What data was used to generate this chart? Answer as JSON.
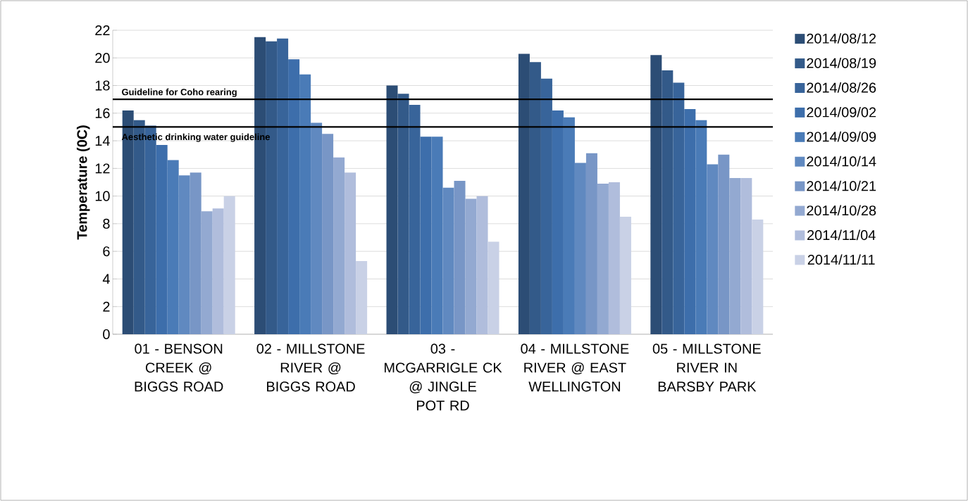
{
  "chart_data": {
    "type": "bar",
    "ylabel": "Temperature (0C)",
    "categories": [
      "01 - BENSON CREEK @ BIGGS ROAD",
      "02 - MILLSTONE RIVER @ BIGGS ROAD",
      "03 - MCGARRIGLE CK @ JINGLE POT RD",
      "04 - MILLSTONE RIVER @ EAST WELLINGTON",
      "05 - MILLSTONE RIVER IN BARSBY PARK"
    ],
    "series": [
      {
        "name": "2014/08/12",
        "color": "#2c4d75",
        "values": [
          16.2,
          21.5,
          18.0,
          20.3,
          20.2
        ]
      },
      {
        "name": "2014/08/19",
        "color": "#335a89",
        "values": [
          15.5,
          21.2,
          17.4,
          19.7,
          19.1
        ]
      },
      {
        "name": "2014/08/26",
        "color": "#38649a",
        "values": [
          15.1,
          21.4,
          16.6,
          18.5,
          18.2
        ]
      },
      {
        "name": "2014/09/02",
        "color": "#3d6eab",
        "values": [
          13.7,
          19.9,
          14.3,
          16.2,
          16.3
        ]
      },
      {
        "name": "2014/09/09",
        "color": "#4a7bb7",
        "values": [
          12.6,
          18.8,
          14.3,
          15.7,
          15.5
        ]
      },
      {
        "name": "2014/10/14",
        "color": "#6089c0",
        "values": [
          11.5,
          15.3,
          10.6,
          12.4,
          12.3
        ]
      },
      {
        "name": "2014/10/21",
        "color": "#7896c6",
        "values": [
          11.7,
          14.5,
          11.1,
          13.1,
          13.0
        ]
      },
      {
        "name": "2014/10/28",
        "color": "#93a9d1",
        "values": [
          8.9,
          12.8,
          9.8,
          10.9,
          11.3
        ]
      },
      {
        "name": "2014/11/04",
        "color": "#b0bddc",
        "values": [
          9.1,
          11.7,
          10.0,
          11.0,
          11.3
        ]
      },
      {
        "name": "2014/11/11",
        "color": "#c9d1e6",
        "values": [
          10.0,
          5.3,
          6.7,
          8.5,
          8.3
        ]
      }
    ],
    "ylim": [
      0,
      22
    ],
    "yticks": [
      0,
      2,
      4,
      6,
      8,
      10,
      12,
      14,
      16,
      18,
      20,
      22
    ],
    "grid": "y",
    "legend": "right",
    "ref_lines": [
      {
        "axis": "y",
        "value": 17,
        "label": "Guideline for Coho rearing",
        "color": "#000000"
      },
      {
        "axis": "y",
        "value": 15,
        "label": "Aesthetic drinking water guideline",
        "color": "#000000"
      }
    ]
  }
}
